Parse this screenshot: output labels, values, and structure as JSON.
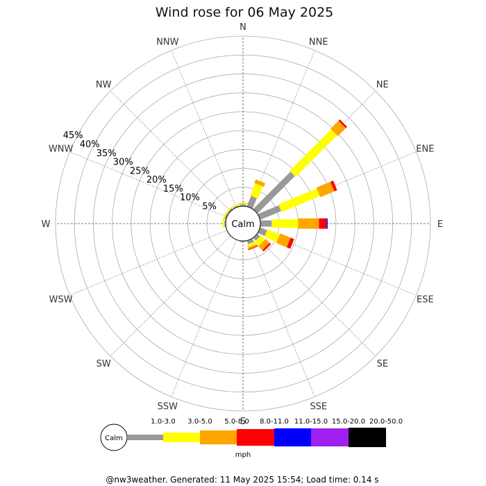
{
  "chart_data": {
    "type": "wind-rose",
    "title": "Wind rose for 06 May 2025",
    "unit": "mph",
    "calm_label": "Calm",
    "directions": [
      "N",
      "NNE",
      "NE",
      "ENE",
      "E",
      "ESE",
      "SE",
      "SSE",
      "S",
      "SSW",
      "SW",
      "WSW",
      "W",
      "WNW",
      "NW",
      "NNW"
    ],
    "ring_labels": [
      "5%",
      "10%",
      "15%",
      "20%",
      "25%",
      "30%",
      "35%",
      "40%",
      "45%"
    ],
    "radial_max_percent": 45,
    "speed_bins": [
      {
        "label": "1.0-3.0",
        "color": "#999999"
      },
      {
        "label": "3.0-5.0",
        "color": "#ffff00"
      },
      {
        "label": "5.0-8.0",
        "color": "#ffa500"
      },
      {
        "label": "8.0-11.0",
        "color": "#ff0000"
      },
      {
        "label": "11.0-15.0",
        "color": "#0000ff"
      },
      {
        "label": "15.0-20.0",
        "color": "#a020f0"
      },
      {
        "label": "20.0-50.0",
        "color": "#000000"
      }
    ],
    "series_percent": {
      "N": [
        0.5,
        0.3,
        0.1,
        0,
        0,
        0,
        0
      ],
      "NNE": [
        3.0,
        3.5,
        1.0,
        0,
        0,
        0,
        0
      ],
      "NE": [
        14.0,
        15.5,
        3.0,
        0.5,
        0,
        0,
        0
      ],
      "ENE": [
        6.0,
        11.0,
        4.0,
        0.8,
        0,
        0,
        0
      ],
      "E": [
        3.0,
        7.0,
        5.5,
        2.0,
        0.3,
        0,
        0
      ],
      "ESE": [
        2.0,
        3.5,
        3.0,
        1.0,
        0,
        0,
        0
      ],
      "SE": [
        1.0,
        1.5,
        1.5,
        0.5,
        0,
        0,
        0
      ],
      "SSE": [
        1.0,
        0.8,
        0.5,
        0.2,
        0,
        0,
        0
      ],
      "S": [
        0.3,
        0,
        0,
        0,
        0,
        0,
        0
      ],
      "SSW": [
        0,
        0,
        0,
        0,
        0,
        0,
        0
      ],
      "SW": [
        0,
        0,
        0,
        0,
        0,
        0,
        0
      ],
      "WSW": [
        0,
        0,
        0,
        0,
        0,
        0,
        0
      ],
      "W": [
        0.3,
        0.5,
        0,
        0,
        0,
        0,
        0
      ],
      "WNW": [
        0.4,
        0.4,
        0,
        0,
        0,
        0,
        0
      ],
      "NW": [
        0.4,
        0.3,
        0,
        0,
        0,
        0,
        0
      ],
      "NNW": [
        0.3,
        0.3,
        0,
        0,
        0,
        0,
        0
      ]
    }
  },
  "footer": "@nw3weather. Generated: 11 May 2025 15:54; Load time: 0.14 s"
}
